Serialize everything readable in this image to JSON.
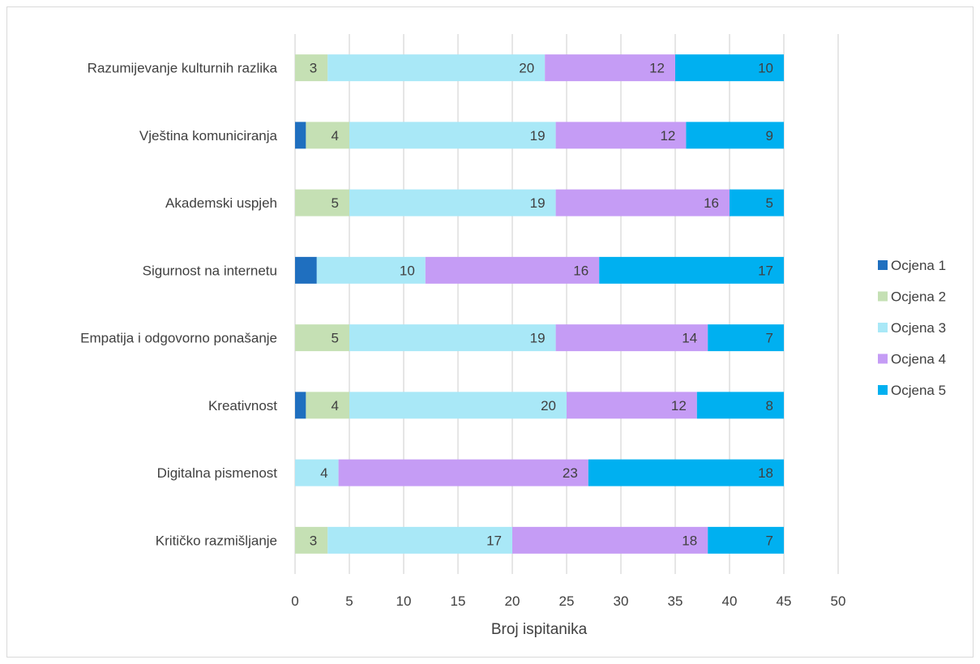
{
  "chart_data": {
    "type": "bar",
    "orientation": "horizontal",
    "stacked": true,
    "categories": [
      "Razumijevanje kulturnih razlika",
      "Vještina komuniciranja",
      "Akademski uspjeh",
      "Sigurnost na internetu",
      "Empatija i odgovorno ponašanje",
      "Kreativnost",
      "Digitalna pismenost",
      "Kritičko razmišljanje"
    ],
    "series": [
      {
        "name": "Ocjena 1",
        "color": "#1f6fbf",
        "values": [
          0,
          1,
          0,
          2,
          0,
          1,
          0,
          0
        ]
      },
      {
        "name": "Ocjena 2",
        "color": "#c5e0b4",
        "values": [
          3,
          4,
          5,
          0,
          5,
          4,
          0,
          3
        ]
      },
      {
        "name": "Ocjena 3",
        "color": "#a9e8f7",
        "values": [
          20,
          19,
          19,
          10,
          19,
          20,
          4,
          17
        ]
      },
      {
        "name": "Ocjena 4",
        "color": "#c59cf5",
        "values": [
          12,
          12,
          16,
          16,
          14,
          12,
          23,
          18
        ]
      },
      {
        "name": "Ocjena 5",
        "color": "#00b0f0",
        "values": [
          10,
          9,
          5,
          17,
          7,
          8,
          18,
          7
        ]
      }
    ],
    "labeled_series": [
      "Ocjena 2",
      "Ocjena 3",
      "Ocjena 4",
      "Ocjena 5"
    ],
    "xlabel": "Broj ispitanika",
    "ylabel": "",
    "xlim": [
      0,
      50
    ],
    "xticks": [
      0,
      5,
      10,
      15,
      20,
      25,
      30,
      35,
      40,
      45,
      50
    ],
    "grid": "vertical",
    "legend": "right"
  }
}
